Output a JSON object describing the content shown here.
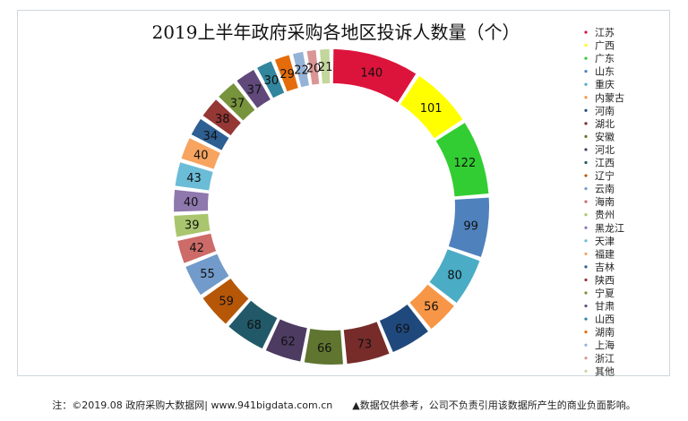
{
  "chart_data": {
    "type": "pie",
    "title": "2019上半年政府采购各地区投诉人数量（个）",
    "categories": [
      "江苏",
      "广西",
      "广东",
      "山东",
      "重庆",
      "内蒙古",
      "河南",
      "湖北",
      "安徽",
      "河北",
      "江西",
      "辽宁",
      "云南",
      "海南",
      "贵州",
      "黑龙江",
      "天津",
      "福建",
      "吉林",
      "陕西",
      "宁夏",
      "甘肃",
      "山西",
      "湖南",
      "上海",
      "浙江",
      "其他"
    ],
    "values": [
      140,
      101,
      122,
      99,
      80,
      56,
      69,
      73,
      66,
      62,
      68,
      59,
      55,
      42,
      39,
      40,
      43,
      40,
      34,
      38,
      37,
      37,
      30,
      29,
      22,
      20,
      21
    ],
    "colors": [
      "#dc143c",
      "#ffff00",
      "#32cd32",
      "#4f81bd",
      "#4bacc6",
      "#f79646",
      "#1f497d",
      "#772c2a",
      "#5f7530",
      "#4d3b62",
      "#215968",
      "#b65708",
      "#729aca",
      "#cd6b69",
      "#a9c66f",
      "#8f78ad",
      "#6bbcd6",
      "#f6a460",
      "#2e5f92",
      "#953735",
      "#77933c",
      "#60497a",
      "#31859c",
      "#e46c0a",
      "#95b3d7",
      "#d99694",
      "#c3d69b"
    ],
    "legend": "right"
  },
  "footnote": {
    "source": "注：©2019.08 政府采购大数据网| www.941bigdata.com.cn",
    "disclaimer": "▲数据仅供参考，公司不负责引用该数据所产生的商业负面影响。"
  }
}
